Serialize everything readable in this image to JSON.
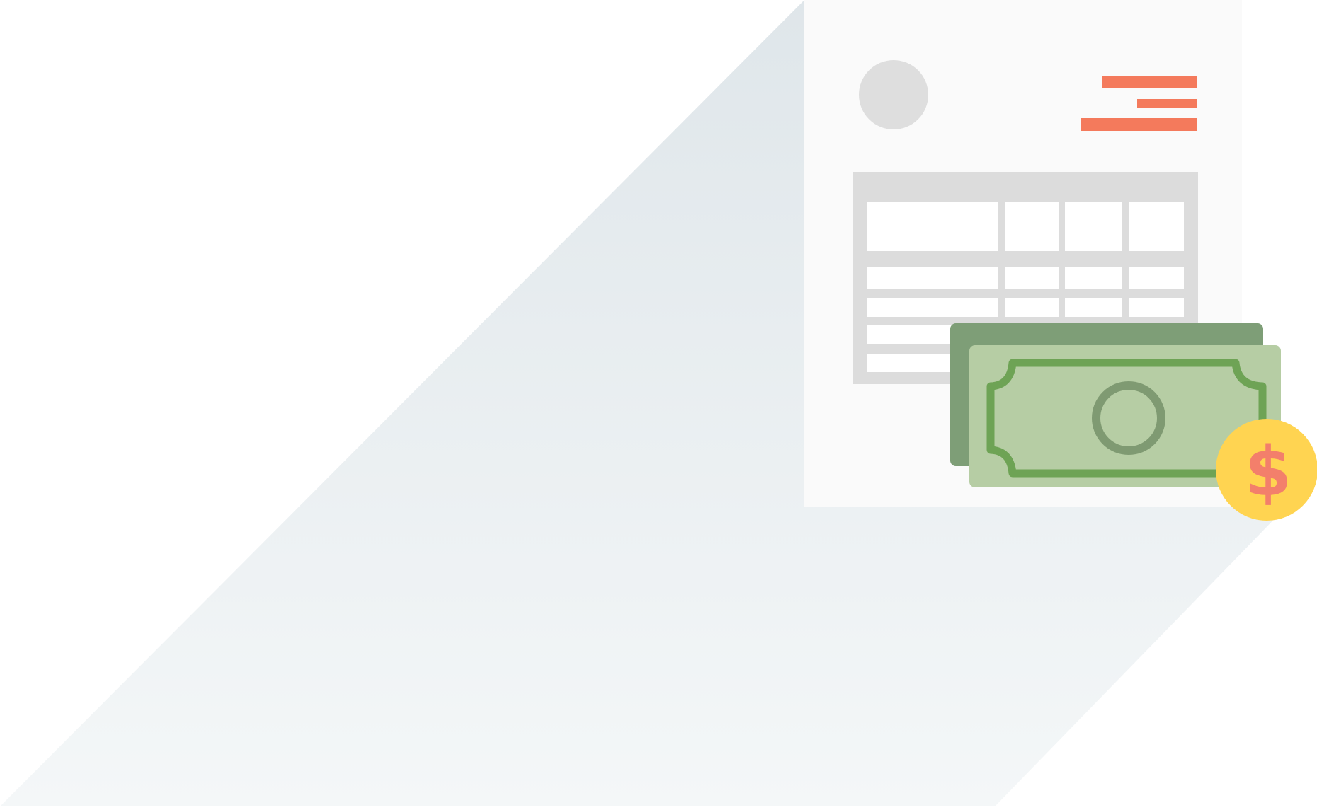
{
  "illustration": {
    "subject": "invoice-with-cash",
    "colors": {
      "background": "#ffffff",
      "shadow_top": "#dfe6ea",
      "shadow_bottom": "#f4f7f8",
      "paper": "#fafafa",
      "paper_edge": "#f0f0f0",
      "avatar": "#dedede",
      "accent_lines": "#f47a5c",
      "table_border": "#dcdcdc",
      "table_cell": "#ffffff",
      "bill_back": "#7e9e77",
      "bill_front": "#b6cda4",
      "bill_border": "#6ea355",
      "bill_seal": "#7f9a72",
      "coin": "#ffd451",
      "coin_symbol_color": "#f37f6b"
    },
    "icons": {
      "avatar": "avatar-placeholder-icon",
      "bill_seal": "circle-seal-icon",
      "coin": "dollar-coin-icon"
    },
    "coin_symbol": "$"
  }
}
